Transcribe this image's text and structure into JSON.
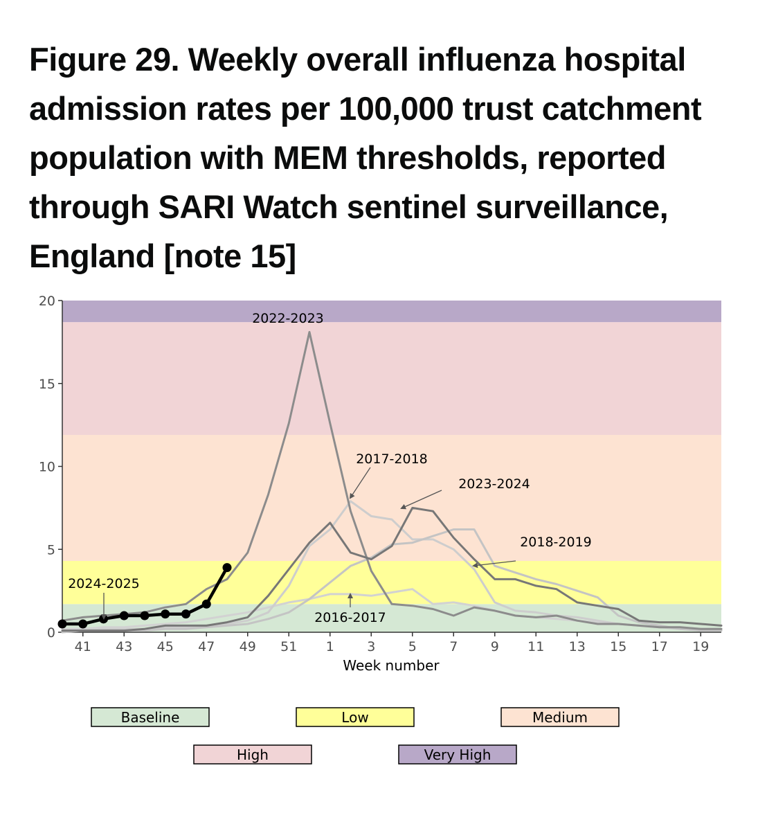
{
  "title": "Figure 29. Weekly overall influenza hospital admission rates per 100,000 trust catchment population with MEM thresholds, reported through SARI Watch sentinel surveillance, England [note 15]",
  "chart_data": {
    "type": "line",
    "xlabel": "Week number",
    "ylabel": "",
    "ylim": [
      0,
      20
    ],
    "yticks": [
      0,
      5,
      10,
      15,
      20
    ],
    "weeks": [
      40,
      41,
      42,
      43,
      44,
      45,
      46,
      47,
      48,
      49,
      50,
      51,
      52,
      1,
      2,
      3,
      4,
      5,
      6,
      7,
      8,
      9,
      10,
      11,
      12,
      13,
      14,
      15,
      16,
      17,
      18,
      19,
      20
    ],
    "xtick_labels": [
      "41",
      "43",
      "45",
      "47",
      "49",
      "51",
      "1",
      "3",
      "5",
      "7",
      "9",
      "11",
      "13",
      "15",
      "17",
      "19"
    ],
    "thresholds": [
      {
        "name": "Baseline",
        "from": 0,
        "to": 1.7,
        "color": "#d5e8d4"
      },
      {
        "name": "Low",
        "from": 1.7,
        "to": 4.3,
        "color": "#ffff99"
      },
      {
        "name": "Medium",
        "from": 4.3,
        "to": 11.9,
        "color": "#fde3d2"
      },
      {
        "name": "High",
        "from": 11.9,
        "to": 18.7,
        "color": "#f1d4d6"
      },
      {
        "name": "Very High",
        "from": 18.7,
        "to": 20,
        "color": "#b8a8c8"
      }
    ],
    "series": [
      {
        "name": "2016-2017",
        "color": "#d2d2d2",
        "width": 3,
        "values": [
          0.2,
          0.2,
          0.3,
          0.3,
          0.4,
          0.5,
          0.6,
          0.8,
          1.0,
          1.2,
          1.5,
          1.8,
          2.0,
          2.3,
          2.3,
          2.2,
          2.4,
          2.6,
          1.7,
          1.8,
          1.6,
          1.3,
          1.0,
          0.9,
          0.8,
          0.7,
          0.6,
          0.5,
          0.4,
          0.3,
          0.3,
          0.2,
          0.2
        ]
      },
      {
        "name": "2017-2018",
        "color": "#cdcdcd",
        "width": 3,
        "values": [
          0.1,
          0.1,
          0.2,
          0.2,
          0.2,
          0.3,
          0.3,
          0.4,
          0.5,
          0.7,
          1.2,
          2.8,
          5.2,
          6.2,
          7.9,
          7.0,
          6.8,
          5.6,
          5.6,
          5.0,
          3.8,
          1.8,
          1.3,
          1.2,
          1.0,
          0.9,
          0.7,
          0.5,
          0.4,
          0.3,
          0.2,
          0.2,
          0.1
        ]
      },
      {
        "name": "2018-2019",
        "color": "#c4c4c4",
        "width": 3,
        "values": [
          0.0,
          0.1,
          0.1,
          0.1,
          0.1,
          0.2,
          0.2,
          0.3,
          0.4,
          0.5,
          0.8,
          1.2,
          2.0,
          3.0,
          4.0,
          4.5,
          5.3,
          5.4,
          5.8,
          6.2,
          6.2,
          4.0,
          3.6,
          3.2,
          2.9,
          2.5,
          2.1,
          1.0,
          0.6,
          0.4,
          0.2,
          0.1,
          0.1
        ]
      },
      {
        "name": "2022-2023",
        "color": "#8c8c8c",
        "width": 3,
        "values": [
          0.7,
          0.9,
          1.0,
          1.1,
          1.2,
          1.5,
          1.7,
          2.6,
          3.2,
          4.8,
          8.3,
          12.6,
          18.1,
          12.6,
          7.3,
          3.7,
          1.7,
          1.6,
          1.4,
          1.0,
          1.5,
          1.3,
          1.0,
          0.9,
          1.0,
          0.7,
          0.5,
          0.5,
          0.4,
          0.3,
          0.3,
          0.2,
          0.2
        ]
      },
      {
        "name": "2023-2024",
        "color": "#777777",
        "width": 3,
        "values": [
          0.1,
          0.1,
          0.1,
          0.1,
          0.2,
          0.4,
          0.4,
          0.4,
          0.6,
          0.9,
          2.2,
          3.8,
          5.4,
          6.6,
          4.8,
          4.4,
          5.2,
          7.5,
          7.3,
          5.7,
          4.4,
          3.2,
          3.2,
          2.8,
          2.6,
          1.8,
          1.6,
          1.4,
          0.7,
          0.6,
          0.6,
          0.5,
          0.4
        ]
      },
      {
        "name": "2024-2025",
        "color": "#000000",
        "width": 4.5,
        "markers": true,
        "values": [
          0.5,
          0.5,
          0.8,
          1.0,
          1.0,
          1.1,
          1.1,
          1.7,
          3.9
        ]
      }
    ],
    "annotations": [
      {
        "text": "2022-2023"
      },
      {
        "text": "2017-2018"
      },
      {
        "text": "2023-2024"
      },
      {
        "text": "2018-2019"
      },
      {
        "text": "2024-2025"
      },
      {
        "text": "2016-2017"
      }
    ],
    "legend": [
      "Baseline",
      "Low",
      "Medium",
      "High",
      "Very High"
    ]
  }
}
